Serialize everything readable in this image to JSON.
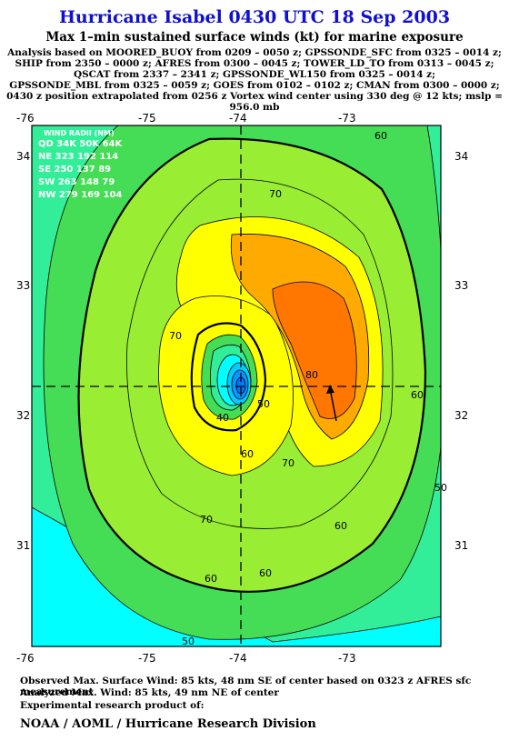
{
  "header": {
    "title": "Hurricane Isabel 0430 UTC 18 Sep 2003",
    "subtitle": "Max 1–min sustained surface winds (kt) for marine exposure",
    "analysis_lines": [
      "Analysis based on  MOORED_BUOY from 0209 – 0050 z;  GPSSONDE_SFC from 0325 – 0014 z;",
      "SHIP from 2350 – 0000 z;  AFRES from 0300 – 0045 z;  TOWER_LD_TO from 0313 – 0045 z;",
      "QSCAT from 2337 – 2341 z;  GPSSONDE_WL150 from 0325 – 0014 z;",
      "GPSSONDE_MBL from 0325 – 0059 z;  GOES from 0102 – 0102 z;  CMAN from 0300 – 0000 z;",
      "0430 z position extrapolated from 0256 z Vortex wind center using 330 deg @ 12 kts; mslp = 956.0 mb"
    ]
  },
  "map": {
    "lon_labels": [
      "-76",
      "-75",
      "-74",
      "-73"
    ],
    "lat_labels": [
      "34",
      "33",
      "32",
      "31"
    ],
    "wind_radii": {
      "title": "WIND RADII (NM)",
      "rows": [
        "QD 34K 50K 64K",
        "NE 323 192 114",
        "SE 250 137  89",
        "SW 263 148  79",
        "NW 279 169 104"
      ]
    },
    "contour_labels": [
      "40",
      "50",
      "60",
      "60",
      "60",
      "60",
      "60",
      "60",
      "70",
      "70",
      "70",
      "70",
      "80",
      "50",
      "50"
    ],
    "colors": {
      "cyan": "#00ffff",
      "green_light": "#33ee99",
      "green": "#44dd55",
      "lime": "#99ee33",
      "yellow": "#ffff00",
      "orange": "#ffaa00",
      "dark_orange": "#ff7700",
      "center_blue": "#0077ff"
    }
  },
  "footer": {
    "observed": "Observed Max. Surface Wind: 85 kts, 48 nm SE of center based on 0323 z AFRES sfc measurement",
    "analyzed": "Analyzed Max. Wind: 85 kts, 49 nm NE of center",
    "experimental": "Experimental research product of:",
    "org": "NOAA / AOML / Hurricane Research Division"
  }
}
